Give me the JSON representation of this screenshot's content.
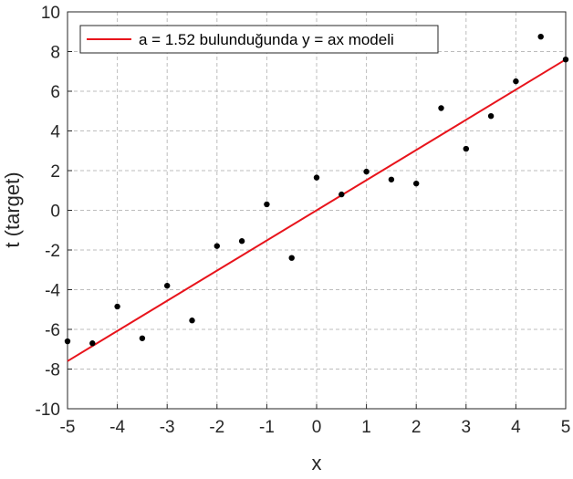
{
  "chart_data": {
    "type": "scatter",
    "xlabel": "x",
    "ylabel": "t  (target)",
    "xlim": [
      -5,
      5
    ],
    "ylim": [
      -10,
      10
    ],
    "xticks": [
      -5,
      -4,
      -3,
      -2,
      -1,
      0,
      1,
      2,
      3,
      4,
      5
    ],
    "yticks": [
      -10,
      -8,
      -6,
      -4,
      -2,
      0,
      2,
      4,
      6,
      8,
      10
    ],
    "grid": true,
    "grid_style": "dashed",
    "legend_position": "top-left",
    "series": [
      {
        "kind": "scatter",
        "color": "#000000",
        "x": [
          -5,
          -4.5,
          -4,
          -3.5,
          -3,
          -2.5,
          -2,
          -1.5,
          -1,
          -0.5,
          0,
          0.5,
          1,
          1.5,
          2,
          2.5,
          3,
          3.5,
          4,
          4.5,
          5
        ],
        "y": [
          -6.6,
          -6.7,
          -4.85,
          -6.45,
          -3.8,
          -5.55,
          -1.8,
          -1.55,
          0.3,
          -2.4,
          1.65,
          0.8,
          1.95,
          1.55,
          1.35,
          5.15,
          3.1,
          4.75,
          6.5,
          8.75,
          7.6
        ]
      },
      {
        "kind": "line",
        "name": "a = 1.52 bulunduğunda y = ax modeli",
        "color": "#e8141c",
        "slope": 1.52,
        "x": [
          -5,
          5
        ],
        "y": [
          -7.6,
          7.6
        ]
      }
    ]
  }
}
